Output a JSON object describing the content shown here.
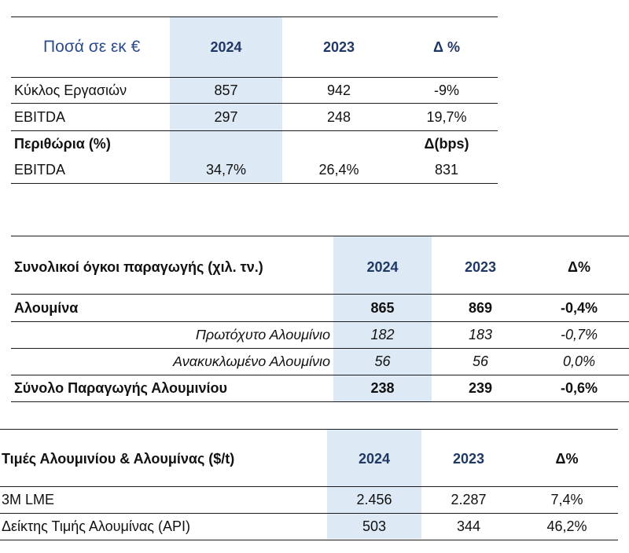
{
  "table1": {
    "header": {
      "label": "Ποσά σε εκ €",
      "col2024": "2024",
      "col2023": "2023",
      "delta": "Δ %"
    },
    "rows": [
      {
        "label": "Κύκλος Εργασιών",
        "v2024": "857",
        "v2023": "942",
        "delta": "-9%"
      },
      {
        "label": "EBITDA",
        "v2024": "297",
        "v2023": "248",
        "delta": "19,7%"
      },
      {
        "label": "Περιθώρια (%)",
        "v2024": "",
        "v2023": "",
        "delta": "Δ(bps)"
      },
      {
        "label": "EBITDA",
        "v2024": "34,7%",
        "v2023": "26,4%",
        "delta": "831"
      }
    ]
  },
  "table2": {
    "header": {
      "label": "Συνολικοί όγκοι παραγωγής (χιλ. τν.)",
      "col2024": "2024",
      "col2023": "2023",
      "delta": "Δ%"
    },
    "rows": [
      {
        "label": "Αλουμίνα",
        "v2024": "865",
        "v2023": "869",
        "delta": "-0,4%"
      },
      {
        "label": "Πρωτόχυτο Αλουμίνιο",
        "v2024": "182",
        "v2023": "183",
        "delta": "-0,7%"
      },
      {
        "label": "Ανακυκλωμένο Αλουμίνιο",
        "v2024": "56",
        "v2023": "56",
        "delta": "0,0%"
      },
      {
        "label": "Σύνολο Παραγωγής Αλουμινίου",
        "v2024": "238",
        "v2023": "239",
        "delta": "-0,6%"
      }
    ]
  },
  "table3": {
    "header": {
      "label": "Τιμές Αλουμινίου & Αλουμίνας ($/t)",
      "col2024": "2024",
      "col2023": "2023",
      "delta": "Δ%"
    },
    "rows": [
      {
        "label": "3M LME",
        "v2024": "2.456",
        "v2023": "2.287",
        "delta": "7,4%"
      },
      {
        "label": "Δείκτης Τιμής Αλουμίνας (API)",
        "v2024": "503",
        "v2023": "344",
        "delta": "46,2%"
      }
    ]
  }
}
